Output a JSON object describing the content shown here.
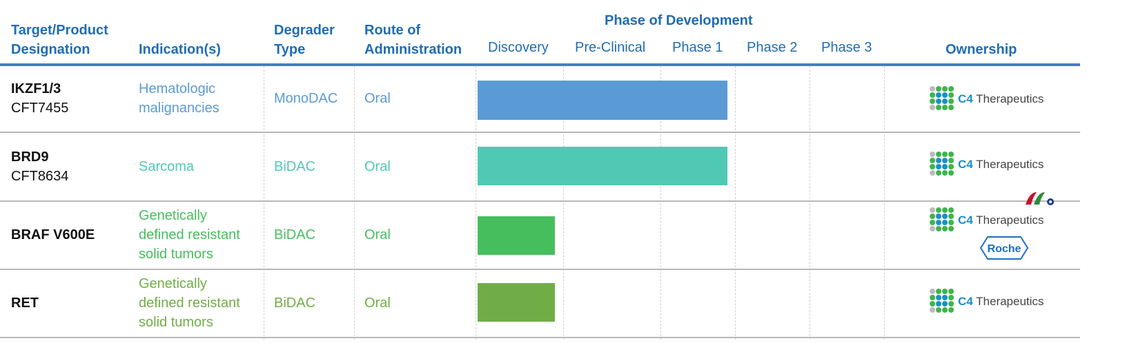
{
  "header": {
    "target": "Target/Product Designation",
    "target_l1": "Target/Product",
    "target_l2": "Designation",
    "indication": "Indication(s)",
    "degrader_l1": "Degrader",
    "degrader_l2": "Type",
    "route_l1": "Route of",
    "route_l2": "Administration",
    "phase_title": "Phase of Development",
    "phases": [
      "Discovery",
      "Pre-Clinical",
      "Phase 1",
      "Phase 2",
      "Phase 3"
    ],
    "ownership": "Ownership"
  },
  "colors": {
    "header": "#1f6db4",
    "row1": "#5b9bd5",
    "row2": "#4fc9b4",
    "row3": "#47be5e",
    "row4": "#70ad47"
  },
  "rows": [
    {
      "target_bold": "IKZF1/3",
      "target_sub": "CFT7455",
      "indication_l1": "Hematologic",
      "indication_l2": "malignancies",
      "indication_l3": "",
      "degrader": "MonoDAC",
      "route": "Oral",
      "progress_phase": 2.0,
      "owner_logos": [
        "C4 Therapeutics"
      ]
    },
    {
      "target_bold": "BRD9",
      "target_sub": "CFT8634",
      "indication_l1": "Sarcoma",
      "indication_l2": "",
      "indication_l3": "",
      "degrader": "BiDAC",
      "route": "Oral",
      "progress_phase": 2.0,
      "owner_logos": [
        "C4 Therapeutics"
      ]
    },
    {
      "target_bold": "BRAF V600E",
      "target_sub": "",
      "indication_l1": "Genetically",
      "indication_l2": "defined resistant",
      "indication_l3": "solid tumors",
      "degrader": "BiDAC",
      "route": "Oral",
      "progress_phase": 0.9,
      "owner_logos": [
        "C4 Therapeutics",
        "Roche"
      ]
    },
    {
      "target_bold": "RET",
      "target_sub": "",
      "indication_l1": "Genetically",
      "indication_l2": "defined resistant",
      "indication_l3": "solid tumors",
      "degrader": "BiDAC",
      "route": "Oral",
      "progress_phase": 0.9,
      "owner_logos": [
        "C4 Therapeutics"
      ]
    }
  ],
  "logos": {
    "c4_prefix": "C4",
    "c4_suffix": " Therapeutics",
    "roche": "Roche"
  }
}
